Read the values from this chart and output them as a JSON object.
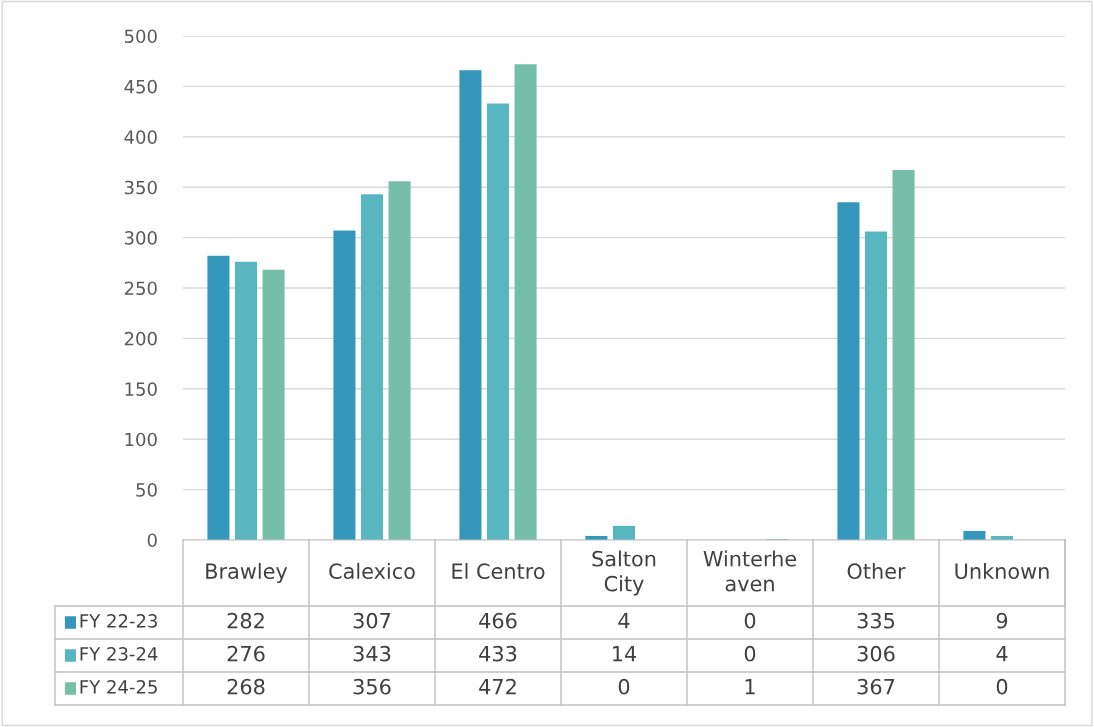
{
  "chart_data": {
    "type": "bar",
    "categories": [
      "Brawley",
      "Calexico",
      "El Centro",
      "Salton City",
      "Winterheaven",
      "Other",
      "Unknown"
    ],
    "series": [
      {
        "name": "FY 22-23",
        "color": "#3697bd",
        "values": [
          282,
          307,
          466,
          4,
          0,
          335,
          9
        ]
      },
      {
        "name": "FY 23-24",
        "color": "#58b6c0",
        "values": [
          276,
          343,
          433,
          14,
          0,
          306,
          4
        ]
      },
      {
        "name": "FY 24-25",
        "color": "#75bfa8",
        "values": [
          268,
          356,
          472,
          0,
          1,
          367,
          0
        ]
      }
    ],
    "ylim": [
      0,
      500
    ],
    "yticks": [
      0,
      50,
      100,
      150,
      200,
      250,
      300,
      350,
      400,
      450,
      500
    ],
    "grid": "y",
    "data_labels": true,
    "legend": "bottom left"
  }
}
